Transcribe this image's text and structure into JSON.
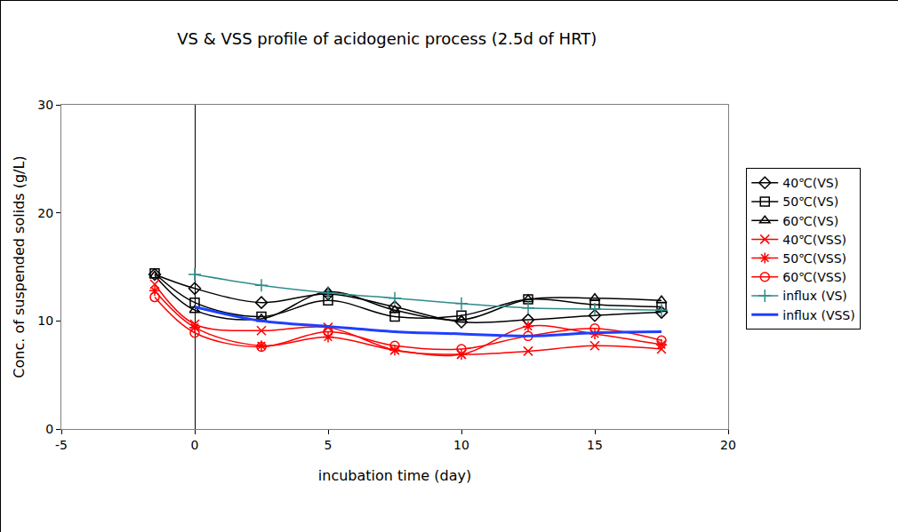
{
  "chart_data": {
    "type": "line",
    "title": "VS & VSS profile of acidogenic process (2.5d of HRT)",
    "x_label": "incubation time (day)",
    "y_label": "Conc. of suspended solids (g/L)",
    "x": [
      -1.5,
      0,
      2.5,
      5,
      7.5,
      10,
      12.5,
      15,
      17.5
    ],
    "series": [
      {
        "name": "40℃(VS)",
        "color": "#000000",
        "marker": "diamond",
        "line_style": "smooth",
        "values": [
          14.3,
          13.0,
          11.7,
          12.5,
          11.3,
          9.9,
          10.1,
          10.5,
          10.8
        ]
      },
      {
        "name": "50℃(VS)",
        "color": "#000000",
        "marker": "square",
        "line_style": "smooth",
        "values": [
          14.4,
          11.7,
          10.4,
          11.9,
          10.4,
          10.5,
          12.0,
          11.5,
          11.3
        ]
      },
      {
        "name": "60℃(VS)",
        "color": "#000000",
        "marker": "triangle",
        "line_style": "smooth",
        "values": [
          14.2,
          11.0,
          10.2,
          12.7,
          11.0,
          10.1,
          12.0,
          12.1,
          11.9
        ]
      },
      {
        "name": "40℃(VSS)",
        "color": "#ff0000",
        "marker": "x",
        "line_style": "smooth",
        "values": [
          13.4,
          9.7,
          9.1,
          9.4,
          7.3,
          6.9,
          7.2,
          7.7,
          7.4
        ]
      },
      {
        "name": "50℃(VSS)",
        "color": "#ff0000",
        "marker": "asterisk",
        "line_style": "smooth",
        "values": [
          12.8,
          9.4,
          7.7,
          8.5,
          7.3,
          6.9,
          9.5,
          8.8,
          7.8
        ]
      },
      {
        "name": "60℃(VSS)",
        "color": "#ff0000",
        "marker": "circle",
        "line_style": "smooth",
        "values": [
          12.2,
          8.9,
          7.6,
          9.0,
          7.7,
          7.4,
          8.6,
          9.3,
          8.2
        ]
      },
      {
        "name": "influx (VS)",
        "color": "#2e8b8b",
        "marker": "plus",
        "line_style": "smooth",
        "values": [
          null,
          14.3,
          13.3,
          12.6,
          12.1,
          11.6,
          11.2,
          11.1,
          11.0
        ]
      },
      {
        "name": "influx (VSS)",
        "color": "#1f3fff",
        "marker": "none",
        "line_style": "smooth",
        "values": [
          null,
          11.3,
          10.0,
          9.5,
          9.0,
          8.8,
          8.6,
          8.9,
          9.0
        ]
      }
    ],
    "xlim": [
      -5,
      20
    ],
    "xticks": [
      -5,
      0,
      5,
      10,
      15,
      20
    ],
    "ylim": [
      0,
      30
    ],
    "yticks": [
      0,
      10,
      20,
      30
    ],
    "grid": false,
    "legend": "right"
  }
}
